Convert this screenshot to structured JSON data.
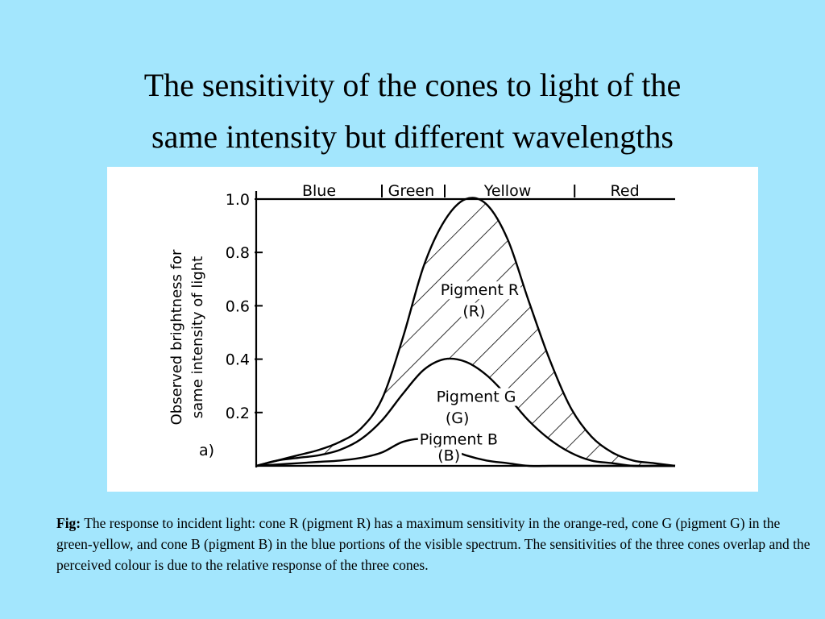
{
  "title": {
    "line1": "The sensitivity of the cones to light of the",
    "line2": "same intensity but different wavelengths"
  },
  "caption": {
    "label": "Fig:",
    "text": "The response to incident light: cone R (pigment R) has a maximum sensitivity in the orange-red, cone G (pigment G) in the green-yellow, and cone B (pigment B) in the blue portions of the visible spectrum. The sensitivities of the three cones overlap and the perceived colour is due to the relative response of the three cones."
  },
  "chart_data": {
    "type": "area",
    "panel_label": "a)",
    "ylabel_line1": "Observed brightness for",
    "ylabel_line2": "same intensity of light",
    "ylim": [
      0,
      1.0
    ],
    "y_ticks": [
      "1.0",
      "0.8",
      "0.6",
      "0.4",
      "0.2"
    ],
    "bands": [
      "Blue",
      "Green",
      "Yellow",
      "Red"
    ],
    "x": [
      0,
      5,
      10,
      15,
      20,
      25,
      30,
      35,
      40,
      45,
      50,
      55,
      60,
      65,
      70,
      75,
      80,
      85,
      90,
      95,
      100
    ],
    "series": [
      {
        "name": "Pigment R",
        "annotation": "(R)",
        "pattern": "hatched",
        "values": [
          0.0,
          0.02,
          0.04,
          0.06,
          0.09,
          0.14,
          0.25,
          0.48,
          0.75,
          0.92,
          1.0,
          0.98,
          0.85,
          0.62,
          0.4,
          0.22,
          0.11,
          0.05,
          0.02,
          0.01,
          0.0
        ]
      },
      {
        "name": "Pigment G",
        "annotation": "(G)",
        "pattern": "plain",
        "values": [
          0.0,
          0.02,
          0.03,
          0.04,
          0.06,
          0.1,
          0.17,
          0.27,
          0.36,
          0.4,
          0.39,
          0.34,
          0.26,
          0.17,
          0.1,
          0.05,
          0.02,
          0.01,
          0.0,
          0.0,
          0.0
        ]
      },
      {
        "name": "Pigment B",
        "annotation": "(B)",
        "pattern": "plain",
        "values": [
          0.0,
          0.005,
          0.01,
          0.015,
          0.02,
          0.03,
          0.05,
          0.09,
          0.1,
          0.07,
          0.04,
          0.02,
          0.01,
          0.0,
          0.0,
          0.0,
          0.0,
          0.0,
          0.0,
          0.0,
          0.0
        ]
      }
    ]
  }
}
